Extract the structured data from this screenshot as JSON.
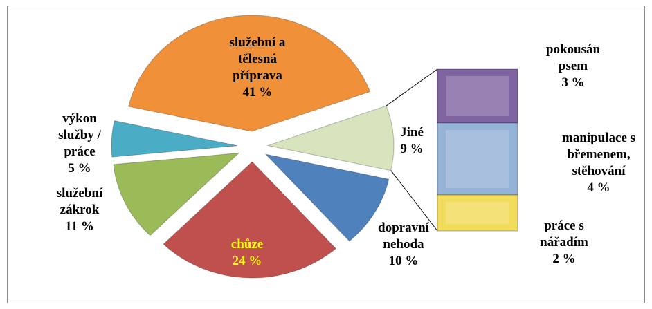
{
  "chart_data": {
    "type": "pie",
    "categories": [
      "Jiné",
      "dopravní nehoda",
      "chůze",
      "služební zákrok",
      "výkon služby / práce",
      "služební a tělesná příprava"
    ],
    "values": [
      9,
      10,
      24,
      11,
      5,
      41
    ],
    "value_labels": [
      "9 %",
      "10 %",
      "24 %",
      "11 %",
      "5 %",
      "41 %"
    ],
    "colors": [
      "#d7e4bd",
      "#4f81bd",
      "#c0504d",
      "#9bbb59",
      "#4bacc6",
      "#f0913a"
    ],
    "secondary": {
      "type": "bar",
      "categories": [
        "pokousán psem",
        "manipulace s břemenem, stěhování",
        "práce s nářadím"
      ],
      "values": [
        3,
        4,
        2
      ],
      "value_labels": [
        "3 %",
        "4 %",
        "2 %"
      ],
      "colors": [
        "#8064a2",
        "#95b3d7",
        "#f2dc5c"
      ]
    }
  }
}
